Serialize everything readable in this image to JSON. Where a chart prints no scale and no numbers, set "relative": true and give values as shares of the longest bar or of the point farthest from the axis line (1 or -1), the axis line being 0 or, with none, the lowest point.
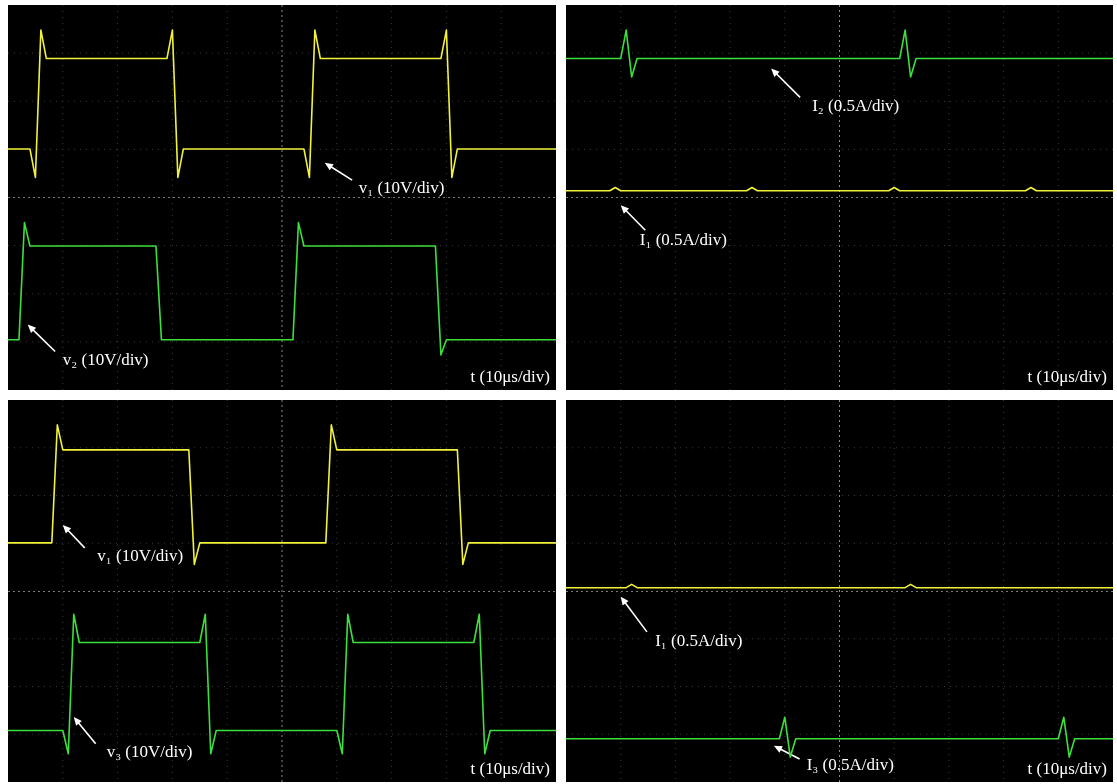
{
  "chart_data": [
    {
      "type": "line",
      "relative": true,
      "grid": true,
      "xlabel": "t (10μs/div)",
      "ref_lines": [
        {
          "axis": "y",
          "value": 0
        }
      ],
      "categories": [
        null,
        null,
        null,
        null,
        null,
        null,
        null,
        null,
        null,
        null,
        null,
        null,
        null,
        null,
        null,
        null,
        null,
        null,
        null,
        null,
        null,
        null,
        null,
        null,
        null,
        null,
        null,
        null,
        null,
        null,
        null,
        null,
        null,
        null,
        null,
        null,
        null,
        null,
        null,
        null,
        null,
        null,
        null,
        null,
        null,
        null,
        null,
        null,
        null,
        null,
        null,
        null,
        null,
        null,
        null,
        null,
        null,
        null,
        null,
        null,
        null,
        null,
        null,
        null,
        null,
        null,
        null,
        null,
        null,
        null,
        null,
        null,
        null,
        null,
        null,
        null,
        null,
        null,
        null,
        null,
        null,
        null,
        null,
        null,
        null,
        null,
        null,
        null,
        null,
        null,
        null,
        null,
        null,
        null,
        null,
        null,
        null,
        null,
        null,
        null,
        null
      ],
      "series": [
        {
          "name": "v₁ (10V/div)",
          "color": "#f2f23a",
          "values": [
            0.29,
            0.29,
            0.29,
            0.29,
            0.29,
            0.12,
            1.0,
            0.83,
            0.83,
            0.83,
            0.83,
            0.83,
            0.83,
            0.83,
            0.83,
            0.83,
            0.83,
            0.83,
            0.83,
            0.83,
            0.83,
            0.83,
            0.83,
            0.83,
            0.83,
            0.83,
            0.83,
            0.83,
            0.83,
            0.83,
            1.0,
            0.12,
            0.29,
            0.29,
            0.29,
            0.29,
            0.29,
            0.29,
            0.29,
            0.29,
            0.29,
            0.29,
            0.29,
            0.29,
            0.29,
            0.29,
            0.29,
            0.29,
            0.29,
            0.29,
            0.29,
            0.29,
            0.29,
            0.29,
            0.29,
            0.12,
            1.0,
            0.83,
            0.83,
            0.83,
            0.83,
            0.83,
            0.83,
            0.83,
            0.83,
            0.83,
            0.83,
            0.83,
            0.83,
            0.83,
            0.83,
            0.83,
            0.83,
            0.83,
            0.83,
            0.83,
            0.83,
            0.83,
            0.83,
            0.83,
            1.0,
            0.12,
            0.29,
            0.29,
            0.29,
            0.29,
            0.29,
            0.29,
            0.29,
            0.29,
            0.29,
            0.29,
            0.29,
            0.29,
            0.29,
            0.29,
            0.29,
            0.29,
            0.29,
            0.29,
            0.29
          ]
        },
        {
          "name": "v₂ (10V/div)",
          "color": "#3ce03c",
          "values": [
            -0.85,
            -0.85,
            -0.85,
            -0.15,
            -0.29,
            -0.29,
            -0.29,
            -0.29,
            -0.29,
            -0.29,
            -0.29,
            -0.29,
            -0.29,
            -0.29,
            -0.29,
            -0.29,
            -0.29,
            -0.29,
            -0.29,
            -0.29,
            -0.29,
            -0.29,
            -0.29,
            -0.29,
            -0.29,
            -0.29,
            -0.29,
            -0.29,
            -0.85,
            -0.85,
            -0.85,
            -0.85,
            -0.85,
            -0.85,
            -0.85,
            -0.85,
            -0.85,
            -0.85,
            -0.85,
            -0.85,
            -0.85,
            -0.85,
            -0.85,
            -0.85,
            -0.85,
            -0.85,
            -0.85,
            -0.85,
            -0.85,
            -0.85,
            -0.85,
            -0.85,
            -0.85,
            -0.15,
            -0.29,
            -0.29,
            -0.29,
            -0.29,
            -0.29,
            -0.29,
            -0.29,
            -0.29,
            -0.29,
            -0.29,
            -0.29,
            -0.29,
            -0.29,
            -0.29,
            -0.29,
            -0.29,
            -0.29,
            -0.29,
            -0.29,
            -0.29,
            -0.29,
            -0.29,
            -0.29,
            -0.29,
            -0.29,
            -0.94,
            -0.85,
            -0.85,
            -0.85,
            -0.85,
            -0.85,
            -0.85,
            -0.85,
            -0.85,
            -0.85,
            -0.85,
            -0.85,
            -0.85,
            -0.85,
            -0.85,
            -0.85,
            -0.85,
            -0.85,
            -0.85,
            -0.85,
            -0.85,
            -0.85
          ]
        }
      ]
    },
    {
      "type": "line",
      "relative": true,
      "grid": true,
      "xlabel": "t (10μs/div)",
      "ref_lines": [
        {
          "axis": "y",
          "value": 0
        }
      ],
      "categories": [
        null,
        null,
        null,
        null,
        null,
        null,
        null,
        null,
        null,
        null,
        null,
        null,
        null,
        null,
        null,
        null,
        null,
        null,
        null,
        null,
        null,
        null,
        null,
        null,
        null,
        null,
        null,
        null,
        null,
        null,
        null,
        null,
        null,
        null,
        null,
        null,
        null,
        null,
        null,
        null,
        null,
        null,
        null,
        null,
        null,
        null,
        null,
        null,
        null,
        null,
        null,
        null,
        null,
        null,
        null,
        null,
        null,
        null,
        null,
        null,
        null,
        null,
        null,
        null,
        null,
        null,
        null,
        null,
        null,
        null,
        null,
        null,
        null,
        null,
        null,
        null,
        null,
        null,
        null,
        null,
        null,
        null,
        null,
        null,
        null,
        null,
        null,
        null,
        null,
        null,
        null,
        null,
        null,
        null,
        null,
        null,
        null,
        null,
        null,
        null,
        null
      ],
      "series": [
        {
          "name": "I₁ (0.5A/div)",
          "color": "#f2f23a",
          "values": [
            0.04,
            0.04,
            0.04,
            0.04,
            0.04,
            0.04,
            0.04,
            0.04,
            0.04,
            0.06,
            0.04,
            0.04,
            0.04,
            0.04,
            0.04,
            0.04,
            0.04,
            0.04,
            0.04,
            0.04,
            0.04,
            0.04,
            0.04,
            0.04,
            0.04,
            0.04,
            0.04,
            0.04,
            0.04,
            0.04,
            0.04,
            0.04,
            0.04,
            0.04,
            0.06,
            0.04,
            0.04,
            0.04,
            0.04,
            0.04,
            0.04,
            0.04,
            0.04,
            0.04,
            0.04,
            0.04,
            0.04,
            0.04,
            0.04,
            0.04,
            0.04,
            0.04,
            0.04,
            0.04,
            0.04,
            0.04,
            0.04,
            0.04,
            0.04,
            0.04,
            0.06,
            0.04,
            0.04,
            0.04,
            0.04,
            0.04,
            0.04,
            0.04,
            0.04,
            0.04,
            0.04,
            0.04,
            0.04,
            0.04,
            0.04,
            0.04,
            0.04,
            0.04,
            0.04,
            0.04,
            0.04,
            0.04,
            0.04,
            0.04,
            0.04,
            0.06,
            0.04,
            0.04,
            0.04,
            0.04,
            0.04,
            0.04,
            0.04,
            0.04,
            0.04,
            0.04,
            0.04,
            0.04,
            0.04,
            0.04,
            0.04
          ]
        },
        {
          "name": "I₂ (0.5A/div)",
          "color": "#3ce03c",
          "values": [
            0.83,
            0.83,
            0.83,
            0.83,
            0.83,
            0.83,
            0.83,
            0.83,
            0.83,
            0.83,
            0.83,
            1.0,
            0.72,
            0.83,
            0.83,
            0.83,
            0.83,
            0.83,
            0.83,
            0.83,
            0.83,
            0.83,
            0.83,
            0.83,
            0.83,
            0.83,
            0.83,
            0.83,
            0.83,
            0.83,
            0.83,
            0.83,
            0.83,
            0.83,
            0.83,
            0.83,
            0.83,
            0.83,
            0.83,
            0.83,
            0.83,
            0.83,
            0.83,
            0.83,
            0.83,
            0.83,
            0.83,
            0.83,
            0.83,
            0.83,
            0.83,
            0.83,
            0.83,
            0.83,
            0.83,
            0.83,
            0.83,
            0.83,
            0.83,
            0.83,
            0.83,
            0.83,
            1.0,
            0.72,
            0.83,
            0.83,
            0.83,
            0.83,
            0.83,
            0.83,
            0.83,
            0.83,
            0.83,
            0.83,
            0.83,
            0.83,
            0.83,
            0.83,
            0.83,
            0.83,
            0.83,
            0.83,
            0.83,
            0.83,
            0.83,
            0.83,
            0.83,
            0.83,
            0.83,
            0.83,
            0.83,
            0.83,
            0.83,
            0.83,
            0.83,
            0.83,
            0.83,
            0.83,
            0.83,
            0.83,
            0.83
          ]
        }
      ]
    },
    {
      "type": "line",
      "relative": true,
      "grid": true,
      "xlabel": "t (10μs/div)",
      "ref_lines": [
        {
          "axis": "y",
          "value": 0
        }
      ],
      "categories": [
        null,
        null,
        null,
        null,
        null,
        null,
        null,
        null,
        null,
        null,
        null,
        null,
        null,
        null,
        null,
        null,
        null,
        null,
        null,
        null,
        null,
        null,
        null,
        null,
        null,
        null,
        null,
        null,
        null,
        null,
        null,
        null,
        null,
        null,
        null,
        null,
        null,
        null,
        null,
        null,
        null,
        null,
        null,
        null,
        null,
        null,
        null,
        null,
        null,
        null,
        null,
        null,
        null,
        null,
        null,
        null,
        null,
        null,
        null,
        null,
        null,
        null,
        null,
        null,
        null,
        null,
        null,
        null,
        null,
        null,
        null,
        null,
        null,
        null,
        null,
        null,
        null,
        null,
        null,
        null,
        null,
        null,
        null,
        null,
        null,
        null,
        null,
        null,
        null,
        null,
        null,
        null,
        null,
        null,
        null,
        null,
        null,
        null,
        null,
        null,
        null
      ],
      "series": [
        {
          "name": "v₁ (10V/div)",
          "color": "#f2f23a",
          "values": [
            0.29,
            0.29,
            0.29,
            0.29,
            0.29,
            0.29,
            0.29,
            0.29,
            0.29,
            1.0,
            0.85,
            0.85,
            0.85,
            0.85,
            0.85,
            0.85,
            0.85,
            0.85,
            0.85,
            0.85,
            0.85,
            0.85,
            0.85,
            0.85,
            0.85,
            0.85,
            0.85,
            0.85,
            0.85,
            0.85,
            0.85,
            0.85,
            0.85,
            0.85,
            0.16,
            0.29,
            0.29,
            0.29,
            0.29,
            0.29,
            0.29,
            0.29,
            0.29,
            0.29,
            0.29,
            0.29,
            0.29,
            0.29,
            0.29,
            0.29,
            0.29,
            0.29,
            0.29,
            0.29,
            0.29,
            0.29,
            0.29,
            0.29,
            0.29,
            1.0,
            0.85,
            0.85,
            0.85,
            0.85,
            0.85,
            0.85,
            0.85,
            0.85,
            0.85,
            0.85,
            0.85,
            0.85,
            0.85,
            0.85,
            0.85,
            0.85,
            0.85,
            0.85,
            0.85,
            0.85,
            0.85,
            0.85,
            0.85,
            0.16,
            0.29,
            0.29,
            0.29,
            0.29,
            0.29,
            0.29,
            0.29,
            0.29,
            0.29,
            0.29,
            0.29,
            0.29,
            0.29,
            0.29,
            0.29,
            0.29,
            0.29
          ]
        },
        {
          "name": "v₃ (10V/div)",
          "color": "#3ce03c",
          "values": [
            -0.84,
            -0.84,
            -0.84,
            -0.84,
            -0.84,
            -0.84,
            -0.84,
            -0.84,
            -0.84,
            -0.84,
            -0.84,
            -0.98,
            -0.14,
            -0.31,
            -0.31,
            -0.31,
            -0.31,
            -0.31,
            -0.31,
            -0.31,
            -0.31,
            -0.31,
            -0.31,
            -0.31,
            -0.31,
            -0.31,
            -0.31,
            -0.31,
            -0.31,
            -0.31,
            -0.31,
            -0.31,
            -0.31,
            -0.31,
            -0.31,
            -0.31,
            -0.14,
            -0.98,
            -0.84,
            -0.84,
            -0.84,
            -0.84,
            -0.84,
            -0.84,
            -0.84,
            -0.84,
            -0.84,
            -0.84,
            -0.84,
            -0.84,
            -0.84,
            -0.84,
            -0.84,
            -0.84,
            -0.84,
            -0.84,
            -0.84,
            -0.84,
            -0.84,
            -0.84,
            -0.84,
            -0.98,
            -0.14,
            -0.31,
            -0.31,
            -0.31,
            -0.31,
            -0.31,
            -0.31,
            -0.31,
            -0.31,
            -0.31,
            -0.31,
            -0.31,
            -0.31,
            -0.31,
            -0.31,
            -0.31,
            -0.31,
            -0.31,
            -0.31,
            -0.31,
            -0.31,
            -0.31,
            -0.31,
            -0.31,
            -0.14,
            -0.98,
            -0.84,
            -0.84,
            -0.84,
            -0.84,
            -0.84,
            -0.84,
            -0.84,
            -0.84,
            -0.84,
            -0.84,
            -0.84,
            -0.84,
            -0.84
          ]
        }
      ]
    },
    {
      "type": "line",
      "relative": true,
      "grid": true,
      "xlabel": "t (10μs/div)",
      "ref_lines": [
        {
          "axis": "y",
          "value": 0
        }
      ],
      "categories": [
        null,
        null,
        null,
        null,
        null,
        null,
        null,
        null,
        null,
        null,
        null,
        null,
        null,
        null,
        null,
        null,
        null,
        null,
        null,
        null,
        null,
        null,
        null,
        null,
        null,
        null,
        null,
        null,
        null,
        null,
        null,
        null,
        null,
        null,
        null,
        null,
        null,
        null,
        null,
        null,
        null,
        null,
        null,
        null,
        null,
        null,
        null,
        null,
        null,
        null,
        null,
        null,
        null,
        null,
        null,
        null,
        null,
        null,
        null,
        null,
        null,
        null,
        null,
        null,
        null,
        null,
        null,
        null,
        null,
        null,
        null,
        null,
        null,
        null,
        null,
        null,
        null,
        null,
        null,
        null,
        null,
        null,
        null,
        null,
        null,
        null,
        null,
        null,
        null,
        null,
        null,
        null,
        null,
        null,
        null,
        null,
        null,
        null,
        null,
        null,
        null
      ],
      "series": [
        {
          "name": "I₁ (0.5A/div)",
          "color": "#f2f23a",
          "values": [
            0.02,
            0.02,
            0.02,
            0.02,
            0.02,
            0.02,
            0.02,
            0.02,
            0.02,
            0.02,
            0.02,
            0.02,
            0.04,
            0.02,
            0.02,
            0.02,
            0.02,
            0.02,
            0.02,
            0.02,
            0.02,
            0.02,
            0.02,
            0.02,
            0.02,
            0.02,
            0.02,
            0.02,
            0.02,
            0.02,
            0.02,
            0.02,
            0.02,
            0.02,
            0.02,
            0.02,
            0.02,
            0.02,
            0.02,
            0.02,
            0.02,
            0.02,
            0.02,
            0.02,
            0.02,
            0.02,
            0.02,
            0.02,
            0.02,
            0.02,
            0.02,
            0.02,
            0.02,
            0.02,
            0.02,
            0.02,
            0.02,
            0.02,
            0.02,
            0.02,
            0.02,
            0.02,
            0.02,
            0.04,
            0.02,
            0.02,
            0.02,
            0.02,
            0.02,
            0.02,
            0.02,
            0.02,
            0.02,
            0.02,
            0.02,
            0.02,
            0.02,
            0.02,
            0.02,
            0.02,
            0.02,
            0.02,
            0.02,
            0.02,
            0.02,
            0.02,
            0.02,
            0.02,
            0.02,
            0.02,
            0.02,
            0.02,
            0.02,
            0.02,
            0.02,
            0.02,
            0.02,
            0.02,
            0.02,
            0.02,
            0.02
          ]
        },
        {
          "name": "I₃ (0.5A/div)",
          "color": "#3ce03c",
          "values": [
            -0.89,
            -0.89,
            -0.89,
            -0.89,
            -0.89,
            -0.89,
            -0.89,
            -0.89,
            -0.89,
            -0.89,
            -0.89,
            -0.89,
            -0.89,
            -0.89,
            -0.89,
            -0.89,
            -0.89,
            -0.89,
            -0.89,
            -0.89,
            -0.89,
            -0.89,
            -0.89,
            -0.89,
            -0.89,
            -0.89,
            -0.89,
            -0.89,
            -0.89,
            -0.89,
            -0.89,
            -0.89,
            -0.89,
            -0.89,
            -0.89,
            -0.89,
            -0.89,
            -0.89,
            -0.89,
            -0.89,
            -0.76,
            -1.0,
            -0.89,
            -0.89,
            -0.89,
            -0.89,
            -0.89,
            -0.89,
            -0.89,
            -0.89,
            -0.89,
            -0.89,
            -0.89,
            -0.89,
            -0.89,
            -0.89,
            -0.89,
            -0.89,
            -0.89,
            -0.89,
            -0.89,
            -0.89,
            -0.89,
            -0.89,
            -0.89,
            -0.89,
            -0.89,
            -0.89,
            -0.89,
            -0.89,
            -0.89,
            -0.89,
            -0.89,
            -0.89,
            -0.89,
            -0.89,
            -0.89,
            -0.89,
            -0.89,
            -0.89,
            -0.89,
            -0.89,
            -0.89,
            -0.89,
            -0.89,
            -0.89,
            -0.89,
            -0.89,
            -0.89,
            -0.89,
            -0.89,
            -0.76,
            -1.0,
            -0.89,
            -0.89,
            -0.89,
            -0.89,
            -0.89,
            -0.89,
            -0.89,
            -0.89
          ]
        }
      ]
    }
  ]
}
